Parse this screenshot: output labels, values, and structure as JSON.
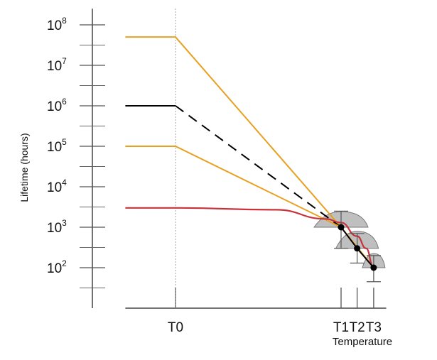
{
  "chart_data": {
    "type": "line",
    "title": "",
    "ylabel": "Lifetime (hours)",
    "xlabel": "Temperature",
    "yscale": "log",
    "ylim_exponent": [
      1.0,
      8.4
    ],
    "yticks": [
      {
        "base": "10",
        "exp": "2",
        "value": 100
      },
      {
        "base": "10",
        "exp": "3",
        "value": 1000
      },
      {
        "base": "10",
        "exp": "4",
        "value": 10000
      },
      {
        "base": "10",
        "exp": "5",
        "value": 100000
      },
      {
        "base": "10",
        "exp": "6",
        "value": 1000000
      },
      {
        "base": "10",
        "exp": "7",
        "value": 10000000
      },
      {
        "base": "10",
        "exp": "8",
        "value": 100000000
      }
    ],
    "xticks": [
      {
        "label": "T0",
        "x": 0.0
      },
      {
        "label": "T1",
        "x": 3.3
      },
      {
        "label": "T2",
        "x": 3.62
      },
      {
        "label": "T3",
        "x": 3.95
      }
    ],
    "xlim": [
      -1.0,
      4.2
    ],
    "grid": false,
    "colors": {
      "orange": "#e8a020",
      "red": "#c8323c",
      "black": "#000000",
      "gray_fill": "#bfbfbf",
      "error_bar": "#555555"
    },
    "series": [
      {
        "style": "orange-solid",
        "points": [
          [
            -1.0,
            50000000
          ],
          [
            0.0,
            50000000
          ],
          [
            3.3,
            1000
          ],
          [
            3.95,
            100
          ]
        ]
      },
      {
        "style": "black-flat",
        "points": [
          [
            -1.0,
            1000000
          ],
          [
            0.0,
            1000000
          ]
        ]
      },
      {
        "style": "black-dashed",
        "points": [
          [
            0.0,
            1000000
          ],
          [
            3.3,
            1000
          ]
        ]
      },
      {
        "style": "orange-solid",
        "points": [
          [
            -1.0,
            100000
          ],
          [
            0.0,
            100000
          ],
          [
            3.3,
            1000
          ],
          [
            3.95,
            100
          ]
        ]
      },
      {
        "style": "red-curve",
        "points": [
          [
            -1.0,
            3000
          ],
          [
            0.0,
            3000
          ],
          [
            2.0,
            2700
          ],
          [
            3.0,
            1600
          ],
          [
            3.3,
            1300
          ],
          [
            3.62,
            600
          ],
          [
            3.8,
            300
          ],
          [
            3.95,
            100
          ]
        ]
      },
      {
        "style": "black-solid",
        "points": [
          [
            3.3,
            1000
          ],
          [
            3.62,
            300
          ],
          [
            3.95,
            100
          ]
        ]
      }
    ],
    "measurements": [
      {
        "x": 3.3,
        "y": 1000,
        "y_low": 300,
        "y_high": 2500
      },
      {
        "x": 3.62,
        "y": 300,
        "y_high": 700,
        "y_low": 130
      },
      {
        "x": 3.95,
        "y": 100,
        "y_high": 200,
        "y_low": 45
      }
    ]
  }
}
